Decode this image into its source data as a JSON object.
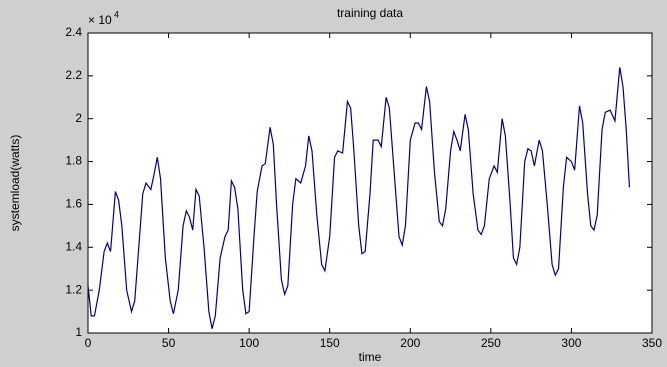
{
  "chart_data": {
    "type": "line",
    "title": "training data",
    "x_label": "time",
    "y_label": "systemload(watts)",
    "y_multiplier": {
      "base": "× 10",
      "exponent": "4"
    },
    "xlim": [
      0,
      350
    ],
    "xticks": [
      0,
      50,
      100,
      150,
      200,
      250,
      300,
      350
    ],
    "ylim": [
      1,
      2.4
    ],
    "yticks": [
      1,
      1.2,
      1.4,
      1.6,
      1.8,
      2,
      2.2,
      2.4
    ],
    "grid": false,
    "series": [
      {
        "color": "#00008b",
        "x": [
          0,
          2,
          4,
          7,
          10,
          12,
          14,
          17,
          19,
          21,
          24,
          27,
          29,
          32,
          34,
          36,
          39,
          41,
          43,
          45,
          48,
          51,
          53,
          56,
          59,
          61,
          63,
          65,
          67,
          69,
          72,
          75,
          77,
          79,
          82,
          85,
          87,
          89,
          91,
          93,
          96,
          98,
          100,
          103,
          105,
          108,
          110,
          113,
          115,
          117,
          120,
          122,
          124,
          127,
          129,
          132,
          135,
          137,
          139,
          142,
          145,
          147,
          150,
          153,
          155,
          158,
          161,
          163,
          165,
          168,
          170,
          172,
          175,
          177,
          180,
          182,
          185,
          187,
          190,
          193,
          195,
          197,
          200,
          203,
          205,
          207,
          210,
          212,
          215,
          218,
          220,
          222,
          225,
          227,
          229,
          231,
          234,
          236,
          239,
          242,
          244,
          246,
          249,
          252,
          254,
          257,
          259,
          262,
          264,
          266,
          268,
          271,
          273,
          275,
          277,
          280,
          282,
          285,
          288,
          290,
          292,
          295,
          297,
          300,
          302,
          305,
          307,
          310,
          312,
          314,
          316,
          319,
          321,
          324,
          327,
          330,
          332,
          334,
          336
        ],
        "values": [
          1.22,
          1.08,
          1.08,
          1.2,
          1.38,
          1.42,
          1.38,
          1.66,
          1.62,
          1.5,
          1.2,
          1.1,
          1.15,
          1.45,
          1.65,
          1.7,
          1.67,
          1.74,
          1.82,
          1.72,
          1.35,
          1.15,
          1.09,
          1.2,
          1.5,
          1.57,
          1.54,
          1.48,
          1.67,
          1.64,
          1.4,
          1.1,
          1.02,
          1.08,
          1.35,
          1.45,
          1.48,
          1.71,
          1.68,
          1.58,
          1.2,
          1.09,
          1.1,
          1.45,
          1.66,
          1.78,
          1.79,
          1.96,
          1.88,
          1.6,
          1.25,
          1.18,
          1.22,
          1.6,
          1.72,
          1.7,
          1.78,
          1.92,
          1.85,
          1.55,
          1.32,
          1.29,
          1.45,
          1.82,
          1.85,
          1.84,
          2.08,
          2.05,
          1.85,
          1.5,
          1.37,
          1.38,
          1.65,
          1.9,
          1.9,
          1.87,
          2.1,
          2.05,
          1.75,
          1.45,
          1.41,
          1.5,
          1.9,
          1.98,
          1.98,
          1.95,
          2.15,
          2.08,
          1.75,
          1.52,
          1.5,
          1.58,
          1.85,
          1.94,
          1.9,
          1.85,
          2.02,
          1.95,
          1.65,
          1.48,
          1.46,
          1.5,
          1.72,
          1.78,
          1.75,
          2.0,
          1.92,
          1.6,
          1.35,
          1.32,
          1.4,
          1.8,
          1.86,
          1.85,
          1.78,
          1.9,
          1.85,
          1.6,
          1.32,
          1.27,
          1.3,
          1.68,
          1.82,
          1.8,
          1.76,
          2.06,
          1.98,
          1.65,
          1.5,
          1.48,
          1.55,
          1.95,
          2.03,
          2.04,
          1.99,
          2.24,
          2.15,
          1.95,
          1.68
        ]
      }
    ]
  }
}
